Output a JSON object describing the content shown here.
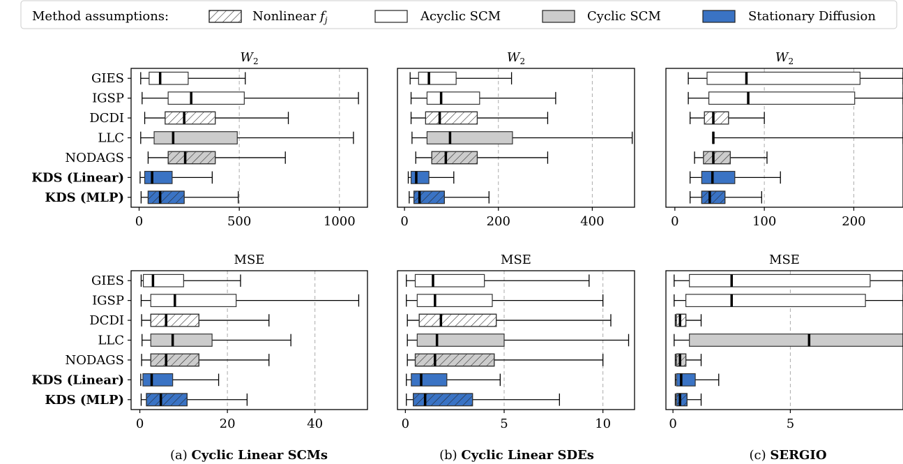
{
  "legend": {
    "title": "Method assumptions:",
    "items": [
      {
        "label": "Nonlinear",
        "math": "f",
        "sub": "j",
        "style": "hatch"
      },
      {
        "label": "Acyclic SCM",
        "style": "white"
      },
      {
        "label": "Cyclic SCM",
        "style": "gray"
      },
      {
        "label": "Stationary Diffusion",
        "style": "blue"
      }
    ]
  },
  "colors": {
    "white": "#ffffff",
    "gray": "#cccccc",
    "blue": "#3a73c4",
    "grid": "#aaaaaa",
    "edge": "#333333"
  },
  "methods": [
    {
      "name": "GIES",
      "fill": "white",
      "hatch": false,
      "bold": false
    },
    {
      "name": "IGSP",
      "fill": "white",
      "hatch": false,
      "bold": false
    },
    {
      "name": "DCDI",
      "fill": "white",
      "hatch": true,
      "bold": false
    },
    {
      "name": "LLC",
      "fill": "gray",
      "hatch": false,
      "bold": false
    },
    {
      "name": "NODAGS",
      "fill": "gray",
      "hatch": true,
      "bold": false
    },
    {
      "name": "KDS (Linear)",
      "fill": "blue",
      "hatch": false,
      "bold": true
    },
    {
      "name": "KDS (MLP)",
      "fill": "blue",
      "hatch": true,
      "bold": true
    }
  ],
  "captions": [
    {
      "prefix": "(a)",
      "title": "Cyclic Linear SCMs"
    },
    {
      "prefix": "(b)",
      "title": "Cyclic Linear SDEs"
    },
    {
      "prefix": "(c)",
      "title": "SERGIO"
    }
  ],
  "chart_data": [
    {
      "type": "box",
      "panel": "a",
      "metric": "W2",
      "title": "W",
      "title_sub": "2",
      "xlim": [
        -40,
        1140
      ],
      "xticks": [
        0,
        500,
        1000
      ],
      "grid": true,
      "boxes": [
        {
          "min": 8,
          "q1": 50,
          "median": 105,
          "q3": 245,
          "max": 530
        },
        {
          "min": 15,
          "q1": 145,
          "median": 260,
          "q3": 525,
          "max": 1095
        },
        {
          "min": 28,
          "q1": 130,
          "median": 225,
          "q3": 380,
          "max": 745
        },
        {
          "min": 8,
          "q1": 75,
          "median": 170,
          "q3": 490,
          "max": 1070
        },
        {
          "min": 45,
          "q1": 145,
          "median": 230,
          "q3": 380,
          "max": 730
        },
        {
          "min": 5,
          "q1": 28,
          "median": 65,
          "q3": 165,
          "max": 365
        },
        {
          "min": 10,
          "q1": 45,
          "median": 105,
          "q3": 225,
          "max": 495
        }
      ]
    },
    {
      "type": "box",
      "panel": "b",
      "metric": "W2",
      "title": "W",
      "title_sub": "2",
      "xlim": [
        -15,
        490
      ],
      "xticks": [
        0,
        200,
        400
      ],
      "grid": true,
      "boxes": [
        {
          "min": 12,
          "q1": 30,
          "median": 52,
          "q3": 110,
          "max": 228
        },
        {
          "min": 14,
          "q1": 48,
          "median": 78,
          "q3": 160,
          "max": 322
        },
        {
          "min": 14,
          "q1": 45,
          "median": 75,
          "q3": 155,
          "max": 305
        },
        {
          "min": 16,
          "q1": 48,
          "median": 97,
          "q3": 230,
          "max": 485
        },
        {
          "min": 24,
          "q1": 58,
          "median": 88,
          "q3": 155,
          "max": 305
        },
        {
          "min": 8,
          "q1": 14,
          "median": 25,
          "q3": 52,
          "max": 105
        },
        {
          "min": 10,
          "q1": 20,
          "median": 32,
          "q3": 85,
          "max": 180
        }
      ]
    },
    {
      "type": "box",
      "panel": "c",
      "metric": "W2",
      "title": "W",
      "title_sub": "2",
      "xlim": [
        -10,
        255
      ],
      "xticks": [
        0,
        100,
        200
      ],
      "grid": true,
      "boxes": [
        {
          "min": 15,
          "q1": 36,
          "median": 80,
          "q3": 207,
          "max": 255
        },
        {
          "min": 15,
          "q1": 38,
          "median": 82,
          "q3": 201,
          "max": 255
        },
        {
          "min": 17,
          "q1": 33,
          "median": 43,
          "q3": 60,
          "max": 100
        },
        {
          "min": 43,
          "q1": 43,
          "median": 43,
          "q3": 43,
          "max": 255
        },
        {
          "min": 22,
          "q1": 32,
          "median": 43,
          "q3": 62,
          "max": 103
        },
        {
          "min": 17,
          "q1": 30,
          "median": 42,
          "q3": 67,
          "max": 118
        },
        {
          "min": 17,
          "q1": 30,
          "median": 39,
          "q3": 56,
          "max": 97
        }
      ]
    },
    {
      "type": "box",
      "panel": "a",
      "metric": "MSE",
      "title": "MSE",
      "xlim": [
        -2,
        52
      ],
      "xticks": [
        0,
        20,
        40
      ],
      "grid": true,
      "boxes": [
        {
          "min": 0.3,
          "q1": 0.8,
          "median": 3.0,
          "q3": 10.0,
          "max": 23.0
        },
        {
          "min": 0.3,
          "q1": 2.5,
          "median": 8.0,
          "q3": 22.0,
          "max": 50.0
        },
        {
          "min": 0.4,
          "q1": 2.5,
          "median": 6.0,
          "q3": 13.5,
          "max": 29.5
        },
        {
          "min": 0.5,
          "q1": 2.5,
          "median": 7.5,
          "q3": 16.5,
          "max": 34.5
        },
        {
          "min": 0.4,
          "q1": 2.5,
          "median": 6.0,
          "q3": 13.5,
          "max": 29.5
        },
        {
          "min": 0.2,
          "q1": 0.7,
          "median": 2.7,
          "q3": 7.5,
          "max": 18.0
        },
        {
          "min": 0.3,
          "q1": 1.5,
          "median": 4.8,
          "q3": 10.8,
          "max": 24.5
        }
      ]
    },
    {
      "type": "box",
      "panel": "b",
      "metric": "MSE",
      "title": "MSE",
      "xlim": [
        -0.4,
        11.6
      ],
      "xticks": [
        0,
        5,
        10
      ],
      "grid": true,
      "boxes": [
        {
          "min": 0.05,
          "q1": 0.5,
          "median": 1.4,
          "q3": 4.0,
          "max": 9.3
        },
        {
          "min": 0.05,
          "q1": 0.6,
          "median": 1.5,
          "q3": 4.4,
          "max": 10.0
        },
        {
          "min": 0.1,
          "q1": 0.7,
          "median": 1.8,
          "q3": 4.6,
          "max": 10.4
        },
        {
          "min": 0.1,
          "q1": 0.6,
          "median": 1.6,
          "q3": 5.0,
          "max": 11.3
        },
        {
          "min": 0.1,
          "q1": 0.5,
          "median": 1.5,
          "q3": 4.5,
          "max": 10.0
        },
        {
          "min": 0.05,
          "q1": 0.3,
          "median": 0.8,
          "q3": 2.1,
          "max": 4.8
        },
        {
          "min": 0.05,
          "q1": 0.4,
          "median": 1.0,
          "q3": 3.4,
          "max": 7.8
        }
      ]
    },
    {
      "type": "box",
      "panel": "c",
      "metric": "MSE",
      "title": "MSE",
      "xlim": [
        -0.3,
        9.8
      ],
      "xticks": [
        0,
        5
      ],
      "grid": true,
      "boxes": [
        {
          "min": 0.05,
          "q1": 0.7,
          "median": 2.5,
          "q3": 8.4,
          "max": 9.8
        },
        {
          "min": 0.05,
          "q1": 0.55,
          "median": 2.5,
          "q3": 8.2,
          "max": 9.8
        },
        {
          "min": 0.1,
          "q1": 0.15,
          "median": 0.3,
          "q3": 0.55,
          "max": 1.2
        },
        {
          "min": 0.05,
          "q1": 0.7,
          "median": 5.8,
          "q3": 9.8,
          "max": 9.8
        },
        {
          "min": 0.1,
          "q1": 0.15,
          "median": 0.3,
          "q3": 0.55,
          "max": 1.2
        },
        {
          "min": 0.1,
          "q1": 0.15,
          "median": 0.35,
          "q3": 0.95,
          "max": 1.95
        },
        {
          "min": 0.1,
          "q1": 0.15,
          "median": 0.3,
          "q3": 0.6,
          "max": 1.2
        }
      ]
    }
  ]
}
